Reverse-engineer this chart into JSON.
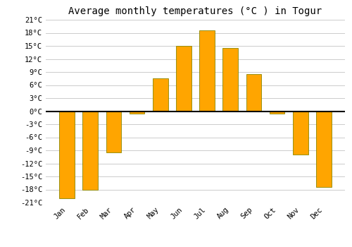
{
  "months": [
    "Jan",
    "Feb",
    "Mar",
    "Apr",
    "May",
    "Jun",
    "Jul",
    "Aug",
    "Sep",
    "Oct",
    "Nov",
    "Dec"
  ],
  "temperatures": [
    -20,
    -18,
    -9.5,
    -0.5,
    7.5,
    15,
    18.5,
    14.5,
    8.5,
    -0.5,
    -10,
    -17.5
  ],
  "bar_color": "#FFA500",
  "bar_edge_color": "#888800",
  "title": "Average monthly temperatures (°C ) in Togur",
  "ylim": [
    -21,
    21
  ],
  "yticks": [
    -21,
    -18,
    -15,
    -12,
    -9,
    -6,
    -3,
    0,
    3,
    6,
    9,
    12,
    15,
    18,
    21
  ],
  "background_color": "#ffffff",
  "grid_color": "#cccccc",
  "zero_line_color": "#000000",
  "title_fontsize": 10,
  "tick_fontsize": 7.5,
  "font_family": "monospace"
}
